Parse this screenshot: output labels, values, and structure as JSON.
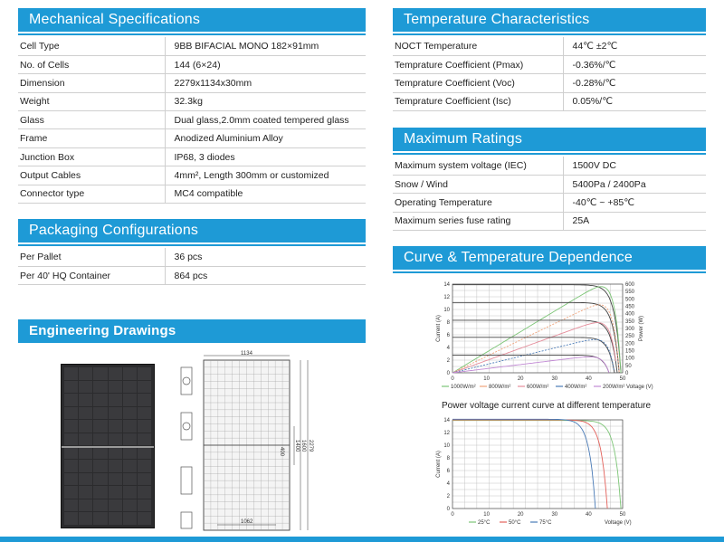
{
  "mechanical": {
    "title": "Mechanical Specifications",
    "rows": [
      {
        "label": "Cell Type",
        "value": "9BB BIFACIAL MONO 182×91mm"
      },
      {
        "label": "No. of Cells",
        "value": "144 (6×24)"
      },
      {
        "label": "Dimension",
        "value": "2279x1134x30mm"
      },
      {
        "label": "Weight",
        "value": "32.3kg"
      },
      {
        "label": "Glass",
        "value": "Dual glass,2.0mm coated tempered glass"
      },
      {
        "label": "Frame",
        "value": "Anodized Aluminium Alloy"
      },
      {
        "label": "Junction Box",
        "value": "IP68, 3 diodes"
      },
      {
        "label": "Output Cables",
        "value": "4mm², Length 300mm or customized"
      },
      {
        "label": "Connector type",
        "value": "MC4 compatible"
      }
    ]
  },
  "packaging": {
    "title": "Packaging Configurations",
    "rows": [
      {
        "label": "Per Pallet",
        "value": "36 pcs"
      },
      {
        "label": "Per 40' HQ Container",
        "value": "864 pcs"
      }
    ]
  },
  "engineering": {
    "title": "Engineering Drawings",
    "dims": {
      "width": "1134",
      "length": "2279",
      "inner": "1062",
      "mount": "400",
      "d1": "1400",
      "d2": "1600"
    }
  },
  "temperature": {
    "title": "Temperature Characteristics",
    "rows": [
      {
        "label": "NOCT Temperature",
        "value": "44℃ ±2℃"
      },
      {
        "label": "Temprature Coefficient (Pmax)",
        "value": "-0.36%/℃"
      },
      {
        "label": "Temprature Coefficient (Voc)",
        "value": "-0.28%/℃"
      },
      {
        "label": "Temprature Coefficient (Isc)",
        "value": "0.05%/℃"
      }
    ]
  },
  "ratings": {
    "title": "Maximum Ratings",
    "rows": [
      {
        "label": "Maximum system voltage (IEC)",
        "value": "1500V DC"
      },
      {
        "label": "Snow / Wind",
        "value": "5400Pa / 2400Pa"
      },
      {
        "label": "Operating Temperature",
        "value": "-40℃ ~ +85℃"
      },
      {
        "label": "Maximum series fuse rating",
        "value": "25A"
      }
    ]
  },
  "curve": {
    "title": "Curve & Temperature Dependence",
    "second_title": "Power voltage current curve at different temperature"
  },
  "colors": {
    "accent": "#1e9ad6"
  },
  "chart_data": [
    {
      "type": "line",
      "title": "",
      "xlabel": "Voltage (V)",
      "ylabel": "Current (A)",
      "y2label": "Power (W)",
      "xlim": [
        0,
        50
      ],
      "ylim": [
        0,
        14
      ],
      "y2lim": [
        0,
        600
      ],
      "xticks": [
        "0",
        "10",
        "20",
        "30",
        "40",
        "50"
      ],
      "yticks": [
        "0",
        "2",
        "4",
        "6",
        "8",
        "10",
        "12",
        "14"
      ],
      "y2ticks": [
        "0",
        "50",
        "100",
        "150",
        "200",
        "250",
        "300",
        "350",
        "400",
        "450",
        "500",
        "550",
        "600"
      ],
      "series": [
        {
          "name": "1000W/m²",
          "color": "#7cc576",
          "isc": 13.9,
          "voc": 49.5,
          "pmax": 545
        },
        {
          "name": "800W/m²",
          "color": "#f0a37a",
          "isc": 11.1,
          "voc": 49.0,
          "pmax": 436
        },
        {
          "name": "600W/m²",
          "color": "#e58d9b",
          "isc": 8.3,
          "voc": 48.4,
          "pmax": 327
        },
        {
          "name": "400W/m²",
          "color": "#4a7bb7",
          "isc": 5.6,
          "voc": 47.6,
          "pmax": 218
        },
        {
          "name": "200W/m²",
          "color": "#c28ad4",
          "isc": 2.8,
          "voc": 46.0,
          "pmax": 109
        }
      ]
    },
    {
      "type": "line",
      "title": "Power voltage current curve at different temperature",
      "xlabel": "Voltage (V)",
      "ylabel": "Current (A)",
      "xlim": [
        0,
        50
      ],
      "ylim": [
        0,
        14
      ],
      "xticks": [
        "0",
        "10",
        "20",
        "30",
        "40",
        "50"
      ],
      "yticks": [
        "0",
        "2",
        "4",
        "6",
        "8",
        "10",
        "12",
        "14"
      ],
      "series": [
        {
          "name": "25°C",
          "color": "#7cc576",
          "isc": 13.9,
          "voc": 49.5
        },
        {
          "name": "50°C",
          "color": "#e3605a",
          "isc": 14.0,
          "voc": 45.5
        },
        {
          "name": "75°C",
          "color": "#4a7bb7",
          "isc": 14.1,
          "voc": 42.0
        }
      ]
    }
  ]
}
